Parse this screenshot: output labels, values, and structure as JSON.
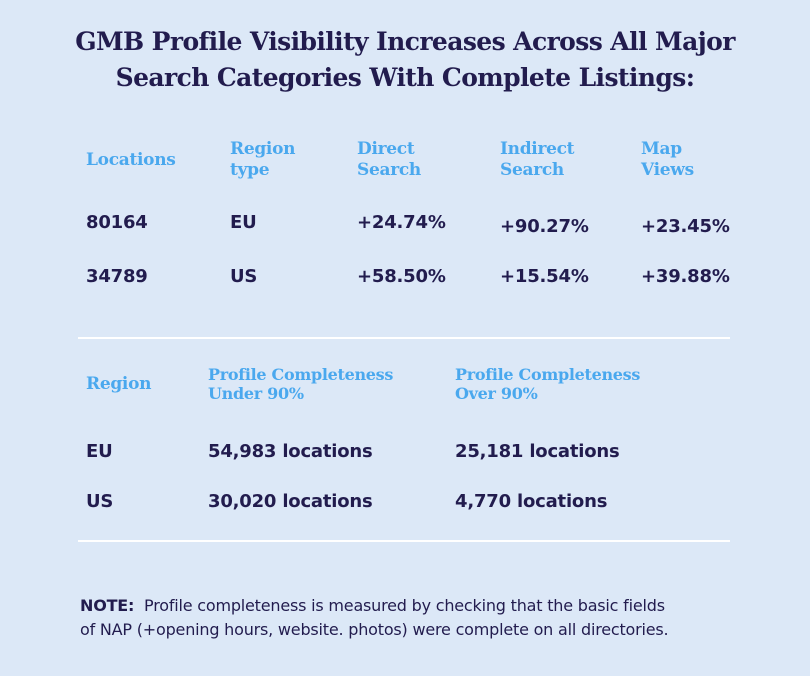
{
  "title": {
    "line1": "GMB Profile Visibility Increases Across All Major",
    "line2": "Search Categories With Complete Listings:"
  },
  "table1": {
    "headers": [
      {
        "line1": "Locations",
        "line2": ""
      },
      {
        "line1": "Region",
        "line2": "type"
      },
      {
        "line1": "Direct",
        "line2": "Search"
      },
      {
        "line1": "Indirect",
        "line2": "Search"
      },
      {
        "line1": "Map",
        "line2": "Views"
      }
    ],
    "rows": [
      [
        "80164",
        "EU",
        "+24.74%",
        "+90.27%",
        "+23.45%"
      ],
      [
        "34789",
        "US",
        "+58.50%",
        "+15.54%",
        "+39.88%"
      ]
    ]
  },
  "table2": {
    "headers": [
      {
        "line1": "Region",
        "line2": ""
      },
      {
        "line1": "Profile Completeness",
        "line2": "Under 90%"
      },
      {
        "line1": "Profile Completeness",
        "line2": "Over 90%"
      }
    ],
    "rows": [
      [
        "EU",
        "54,983 locations",
        "25,181 locations"
      ],
      [
        "US",
        "30,020 locations",
        "4,770 locations"
      ]
    ]
  },
  "note": {
    "label": "NOTE:",
    "line1": "Profile completeness is measured by checking that the basic fields",
    "line2": "of NAP (+opening hours, website. photos) were complete on all directories."
  },
  "colors": {
    "background": "#dce8f7",
    "text": "#221c4e",
    "header": "#4aa8ee",
    "rule": "#ffffff"
  }
}
